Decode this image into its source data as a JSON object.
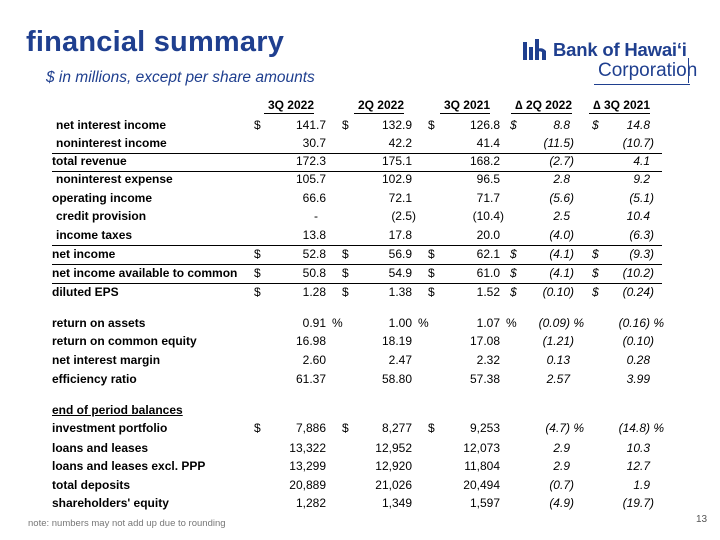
{
  "header": {
    "title": "financial summary",
    "subtitle": "$ in millions, except per share amounts"
  },
  "logo": {
    "brand": "Bank of Hawai‘i",
    "corporation": "Corporation"
  },
  "columns": [
    "3Q 2022",
    "2Q 2022",
    "3Q 2021",
    "∆ 2Q 2022",
    "∆ 3Q 2021"
  ],
  "rows": [
    {
      "label": "net interest income",
      "q3_22": "141.7",
      "q2_22": "132.9",
      "q3_21": "126.8",
      "d2q": "8.8",
      "d3q": "14.8",
      "cur": "$",
      "dcur": "$"
    },
    {
      "label": "noninterest income",
      "q3_22": "30.7",
      "q2_22": "42.2",
      "q3_21": "41.4",
      "d2q": "(11.5)",
      "d3q": "(10.7)"
    },
    {
      "label": "total revenue",
      "q3_22": "172.3",
      "q2_22": "175.1",
      "q3_21": "168.2",
      "d2q": "(2.7)",
      "d3q": "4.1"
    },
    {
      "label": "noninterest expense",
      "q3_22": "105.7",
      "q2_22": "102.9",
      "q3_21": "96.5",
      "d2q": "2.8",
      "d3q": "9.2"
    },
    {
      "label": "operating income",
      "q3_22": "66.6",
      "q2_22": "72.1",
      "q3_21": "71.7",
      "d2q": "(5.6)",
      "d3q": "(5.1)"
    },
    {
      "label": "credit provision",
      "q3_22": "-",
      "q2_22": "(2.5)",
      "q3_21": "(10.4)",
      "d2q": "2.5",
      "d3q": "10.4"
    },
    {
      "label": "income taxes",
      "q3_22": "13.8",
      "q2_22": "17.8",
      "q3_21": "20.0",
      "d2q": "(4.0)",
      "d3q": "(6.3)"
    },
    {
      "label": "net income",
      "q3_22": "52.8",
      "q2_22": "56.9",
      "q3_21": "62.1",
      "d2q": "(4.1)",
      "d3q": "(9.3)",
      "cur": "$",
      "dcur": "$"
    },
    {
      "label": "net income available to common",
      "q3_22": "50.8",
      "q2_22": "54.9",
      "q3_21": "61.0",
      "d2q": "(4.1)",
      "d3q": "(10.2)",
      "cur": "$",
      "dcur": "$"
    },
    {
      "label": "diluted EPS",
      "q3_22": "1.28",
      "q2_22": "1.38",
      "q3_21": "1.52",
      "d2q": "(0.10)",
      "d3q": "(0.24)",
      "cur": "$",
      "dcur": "$"
    },
    {
      "label": "return on assets",
      "q3_22": "0.91",
      "q2_22": "1.00",
      "q3_21": "1.07",
      "d2q": "(0.09)",
      "d3q": "(0.16)",
      "pct": "%"
    },
    {
      "label": "return on common equity",
      "q3_22": "16.98",
      "q2_22": "18.19",
      "q3_21": "17.08",
      "d2q": "(1.21)",
      "d3q": "(0.10)"
    },
    {
      "label": "net interest margin",
      "q3_22": "2.60",
      "q2_22": "2.47",
      "q3_21": "2.32",
      "d2q": "0.13",
      "d3q": "0.28"
    },
    {
      "label": "efficiency ratio",
      "q3_22": "61.37",
      "q2_22": "58.80",
      "q3_21": "57.38",
      "d2q": "2.57",
      "d3q": "3.99"
    },
    {
      "label": "end of period balances",
      "q3_22": "",
      "q2_22": "",
      "q3_21": "",
      "d2q": "",
      "d3q": ""
    },
    {
      "label": "investment portfolio",
      "q3_22": "7,886",
      "q2_22": "8,277",
      "q3_21": "9,253",
      "d2q": "(4.7)",
      "d3q": "(14.8)",
      "cur": "$",
      "pct": "%"
    },
    {
      "label": "loans and leases",
      "q3_22": "13,322",
      "q2_22": "12,952",
      "q3_21": "12,073",
      "d2q": "2.9",
      "d3q": "10.3"
    },
    {
      "label": "loans and leases excl. PPP",
      "q3_22": "13,299",
      "q2_22": "12,920",
      "q3_21": "11,804",
      "d2q": "2.9",
      "d3q": "12.7"
    },
    {
      "label": "total deposits",
      "q3_22": "20,889",
      "q2_22": "21,026",
      "q3_21": "20,494",
      "d2q": "(0.7)",
      "d3q": "1.9"
    },
    {
      "label": "shareholders' equity",
      "q3_22": "1,282",
      "q2_22": "1,349",
      "q3_21": "1,597",
      "d2q": "(4.9)",
      "d3q": "(19.7)"
    }
  ],
  "footnote": "note: numbers may not add up due to rounding",
  "page_number": "13",
  "colors": {
    "accent": "#1f3f8f",
    "text": "#000000",
    "footnote": "#777777"
  }
}
